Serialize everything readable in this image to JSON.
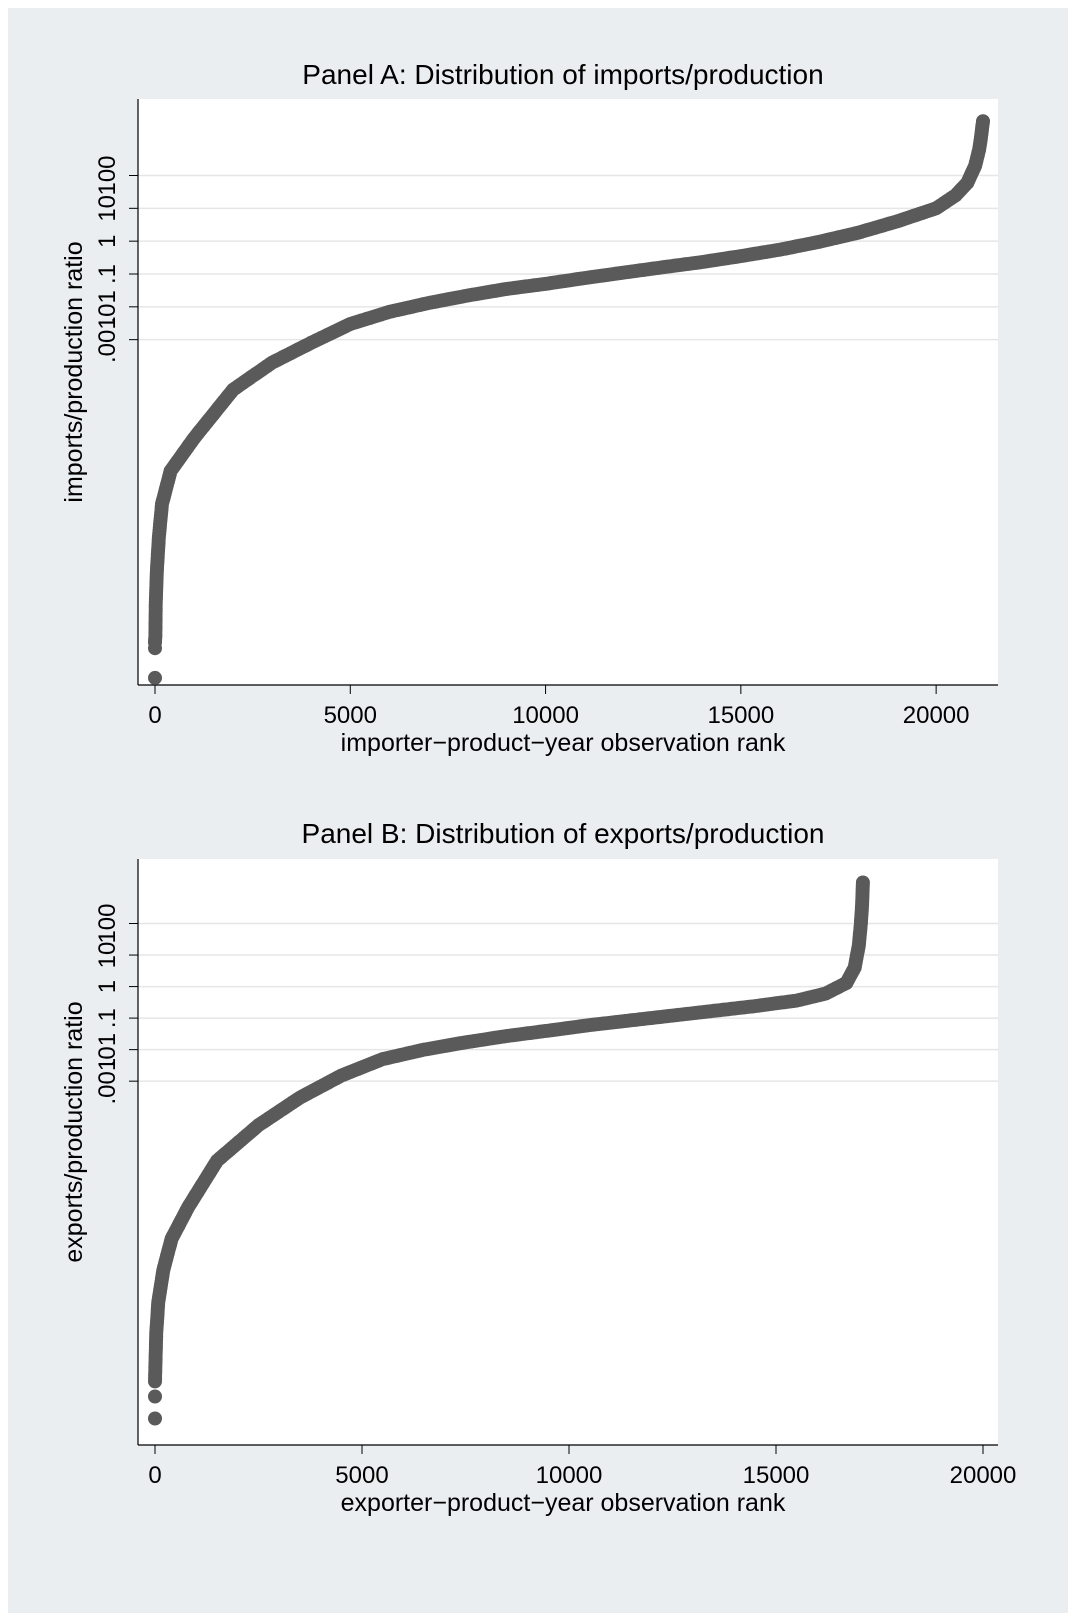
{
  "chart_data": [
    {
      "type": "scatter",
      "title": "Panel A: Distribution of imports/production",
      "xlabel": "importer−product−year observation rank",
      "ylabel": "imports/production ratio",
      "yscale": "log",
      "xlim": [
        0,
        21200
      ],
      "ylim": [
        1e-13,
        8000
      ],
      "xticks": [
        0,
        5000,
        10000,
        15000,
        20000
      ],
      "xtick_labels": [
        "0",
        "5000",
        "10000",
        "15000",
        "20000"
      ],
      "yticks": [
        0.001,
        0.01,
        0.1,
        1,
        10,
        100
      ],
      "ytick_labels": [
        ".001",
        ".01",
        ".1",
        "1",
        "10",
        "100"
      ],
      "grid": true,
      "marker_color": "#5a5a5a",
      "points": [
        [
          0,
          5e-14
        ],
        [
          0,
          4e-13
        ],
        [
          0,
          6e-13
        ],
        [
          10,
          1e-12
        ],
        [
          20,
          1e-11
        ],
        [
          50,
          1e-10
        ],
        [
          100,
          1e-09
        ],
        [
          180,
          1e-08
        ],
        [
          400,
          1e-07
        ],
        [
          1000,
          1e-06
        ],
        [
          2000,
          3e-05
        ],
        [
          3000,
          0.0002
        ],
        [
          4000,
          0.0008
        ],
        [
          5000,
          0.003
        ],
        [
          6000,
          0.007
        ],
        [
          7000,
          0.013
        ],
        [
          8000,
          0.022
        ],
        [
          9000,
          0.035
        ],
        [
          10000,
          0.05
        ],
        [
          11000,
          0.075
        ],
        [
          12000,
          0.11
        ],
        [
          13000,
          0.16
        ],
        [
          14000,
          0.23
        ],
        [
          15000,
          0.35
        ],
        [
          16000,
          0.55
        ],
        [
          17000,
          0.95
        ],
        [
          18000,
          1.8
        ],
        [
          19000,
          4
        ],
        [
          20000,
          10
        ],
        [
          20500,
          25
        ],
        [
          20800,
          60
        ],
        [
          21000,
          200
        ],
        [
          21100,
          600
        ],
        [
          21150,
          1500
        ],
        [
          21200,
          4500
        ]
      ]
    },
    {
      "type": "scatter",
      "title": "Panel B: Distribution of exports/production",
      "xlabel": "exporter−product−year observation rank",
      "ylabel": "exports/production ratio",
      "yscale": "log",
      "xlim": [
        0,
        20000
      ],
      "ylim": [
        1e-14,
        4000
      ],
      "xticks": [
        0,
        5000,
        10000,
        15000,
        20000
      ],
      "xtick_labels": [
        "0",
        "5000",
        "10000",
        "15000",
        "20000"
      ],
      "yticks": [
        0.001,
        0.01,
        0.1,
        1,
        10,
        100
      ],
      "ytick_labels": [
        ".001",
        ".01",
        ".1",
        "1",
        "10",
        "100"
      ],
      "grid": true,
      "marker_color": "#5a5a5a",
      "points": [
        [
          0,
          2e-14
        ],
        [
          0,
          1e-13
        ],
        [
          0,
          3e-13
        ],
        [
          10,
          1e-12
        ],
        [
          30,
          1e-11
        ],
        [
          80,
          1e-10
        ],
        [
          200,
          1e-09
        ],
        [
          400,
          1e-08
        ],
        [
          800,
          1e-07
        ],
        [
          1500,
          3e-06
        ],
        [
          2500,
          4e-05
        ],
        [
          3500,
          0.0003
        ],
        [
          4500,
          0.0015
        ],
        [
          5500,
          0.005
        ],
        [
          6500,
          0.01
        ],
        [
          7500,
          0.017
        ],
        [
          8500,
          0.027
        ],
        [
          9500,
          0.04
        ],
        [
          10500,
          0.06
        ],
        [
          11500,
          0.085
        ],
        [
          12500,
          0.12
        ],
        [
          13500,
          0.17
        ],
        [
          14500,
          0.24
        ],
        [
          15500,
          0.36
        ],
        [
          16200,
          0.6
        ],
        [
          16700,
          1.3
        ],
        [
          16900,
          4
        ],
        [
          17000,
          20
        ],
        [
          17050,
          100
        ],
        [
          17080,
          400
        ],
        [
          17100,
          2000
        ]
      ]
    }
  ]
}
